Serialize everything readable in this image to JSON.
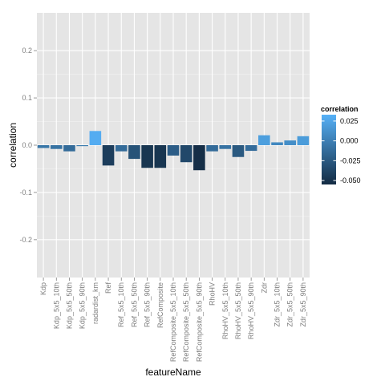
{
  "chart_data": {
    "type": "bar",
    "xlabel": "featureName",
    "ylabel": "correlation",
    "ylim": [
      -0.28,
      0.28
    ],
    "yticks": [
      -0.2,
      -0.1,
      0.0,
      0.1,
      0.2
    ],
    "ytick_labels": [
      "-0.2",
      "-0.1",
      "0.0",
      "0.1",
      "0.2"
    ],
    "grid": true,
    "categories": [
      "Kdp",
      "Kdp_5x5_10th",
      "Kdp_5x5_50th",
      "Kdp_5x5_90th",
      "radardist_km",
      "Ref",
      "Ref_5x5_10th",
      "Ref_5x5_50th",
      "Ref_5x5_90th",
      "RefComposite",
      "RefComposite_5x5_10th",
      "RefComposite_5x5_50th",
      "RefComposite_5x5_90th",
      "RhoHV",
      "RhoHV_5x5_10th",
      "RhoHV_5x5_50th",
      "RhoHV_5x5_90th",
      "Zdr",
      "Zdr_5x5_10th",
      "Zdr_5x5_50th",
      "Zdr_5x5_90th"
    ],
    "values": [
      -0.006,
      -0.008,
      -0.013,
      -0.002,
      0.03,
      -0.043,
      -0.013,
      -0.029,
      -0.048,
      -0.048,
      -0.022,
      -0.036,
      -0.053,
      -0.013,
      -0.008,
      -0.025,
      -0.012,
      0.021,
      0.006,
      0.01,
      0.019
    ],
    "legend": {
      "title": "correlation",
      "placement": "right",
      "range": [
        -0.055,
        0.033
      ],
      "ticks": [
        0.025,
        0.0,
        -0.025,
        -0.05
      ],
      "tick_labels": [
        "0.025",
        "0.000",
        "-0.025",
        "-0.050"
      ],
      "low_color": "#132B43",
      "high_color": "#56B1F7"
    },
    "colors": {
      "panel": "#E5E5E5",
      "grid_major": "#FFFFFF",
      "grid_minor": "#F2F2F2"
    }
  }
}
